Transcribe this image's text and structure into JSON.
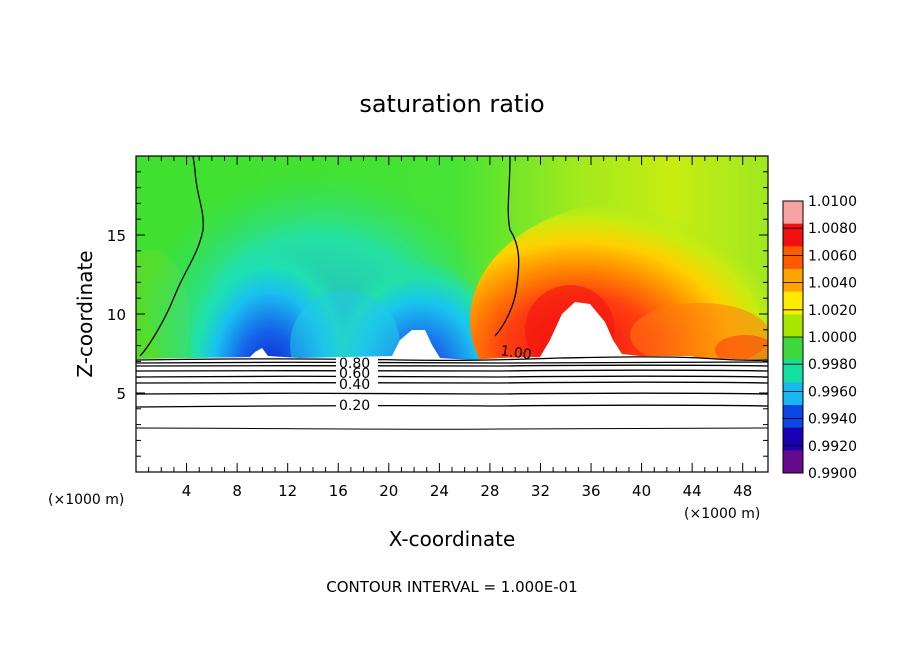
{
  "chart_data": {
    "type": "heatmap",
    "title": "saturation ratio",
    "xlabel": "X-coordinate",
    "ylabel": "Z-coordinate",
    "x_units": "(×1000 m)",
    "z_units": "(×1000 m)",
    "xlim": [
      0,
      50
    ],
    "ylim": [
      0,
      20
    ],
    "x_ticks": [
      "4",
      "8",
      "12",
      "16",
      "20",
      "24",
      "28",
      "32",
      "36",
      "40",
      "44",
      "48"
    ],
    "x_tick_values": [
      4,
      8,
      12,
      16,
      20,
      24,
      28,
      32,
      36,
      40,
      44,
      48
    ],
    "y_ticks": [
      "5",
      "10",
      "15"
    ],
    "y_tick_values": [
      5,
      10,
      15
    ],
    "colorbar": {
      "labels": [
        "1.0100",
        "1.0080",
        "1.0060",
        "1.0040",
        "1.0020",
        "1.0000",
        "0.9980",
        "0.9960",
        "0.9940",
        "0.9920",
        "0.9900"
      ],
      "min": 0.99,
      "max": 1.01,
      "colors": [
        "#f7a3a3",
        "#f21010",
        "#ff5a00",
        "#ffa500",
        "#ffeb00",
        "#a8e600",
        "#3fd93f",
        "#12dfa0",
        "#18b7f0",
        "#0a47e6",
        "#1a00b4",
        "#650a8c"
      ]
    },
    "contour_labels": [
      "1.00",
      "0.80",
      "0.60",
      "0.40",
      "0.20"
    ],
    "contour_levels": [
      {
        "label": "0.20",
        "z": 4.3
      },
      {
        "label": "",
        "z": 2.9
      },
      {
        "label": "0.40",
        "z": 5.4
      },
      {
        "label": "",
        "z": 5.9
      },
      {
        "label": "0.60",
        "z": 6.3
      },
      {
        "label": "",
        "z": 6.6
      },
      {
        "label": "0.80",
        "z": 6.9
      },
      {
        "label": "",
        "z": 7.1
      }
    ],
    "footer": "CONTOUR INTERVAL = 1.000E-01"
  }
}
